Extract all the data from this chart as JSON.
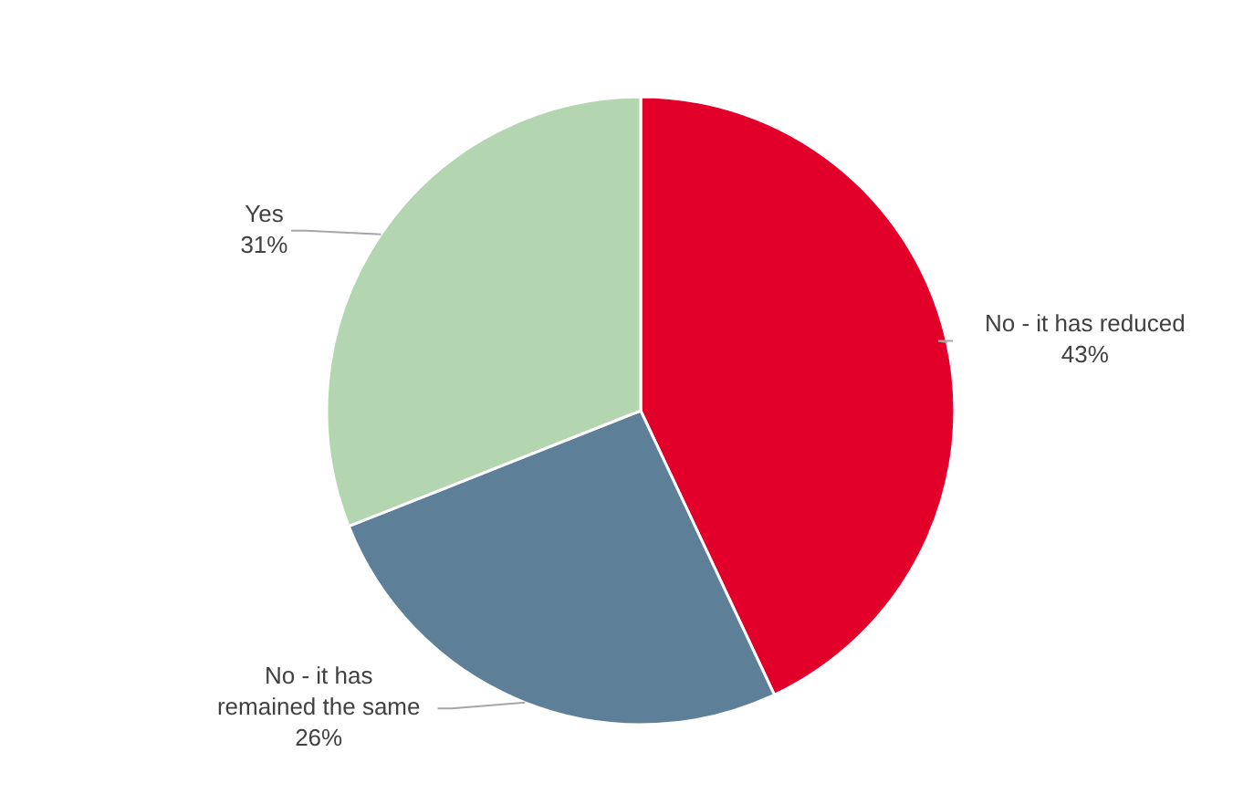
{
  "chart_data": {
    "type": "pie",
    "categories": [
      "No - it has reduced",
      "No - it has remained the same",
      "Yes"
    ],
    "values": [
      43,
      26,
      31
    ],
    "colors": [
      "#e2002b",
      "#5e7f98",
      "#b3d5b0"
    ],
    "value_labels": [
      "43%",
      "26%",
      "31%"
    ]
  }
}
